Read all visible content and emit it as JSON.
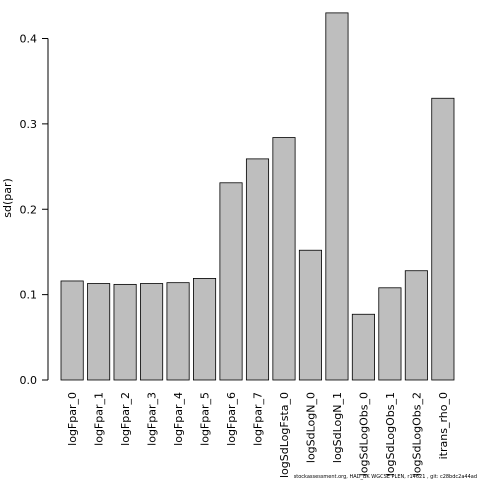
{
  "chart_data": {
    "type": "bar",
    "ylabel": "sd(par)",
    "xlabel": "",
    "ylim": [
      0,
      0.43
    ],
    "yticks": [
      0.0,
      0.1,
      0.2,
      0.3,
      0.4
    ],
    "ytick_labels": [
      "0.0",
      "0.1",
      "0.2",
      "0.3",
      "0.4"
    ],
    "categories": [
      "logFpar_0",
      "logFpar_1",
      "logFpar_2",
      "logFpar_3",
      "logFpar_4",
      "logFpar_5",
      "logFpar_6",
      "logFpar_7",
      "logSdLogFsta_0",
      "logSdLogN_0",
      "logSdLogN_1",
      "logSdLogObs_0",
      "logSdLogObs_1",
      "logSdLogObs_2",
      "itrans_rho_0"
    ],
    "values": [
      0.116,
      0.113,
      0.112,
      0.113,
      0.114,
      0.119,
      0.231,
      0.259,
      0.284,
      0.152,
      0.43,
      0.077,
      0.108,
      0.128,
      0.33
    ],
    "bar_color": "#bebebe",
    "grid": false,
    "legend": "none"
  },
  "footer": {
    "text": "stockassessment.org, HAD_BK WGCSE PLEN, r14621 , git: c28bdc2a44ad"
  }
}
